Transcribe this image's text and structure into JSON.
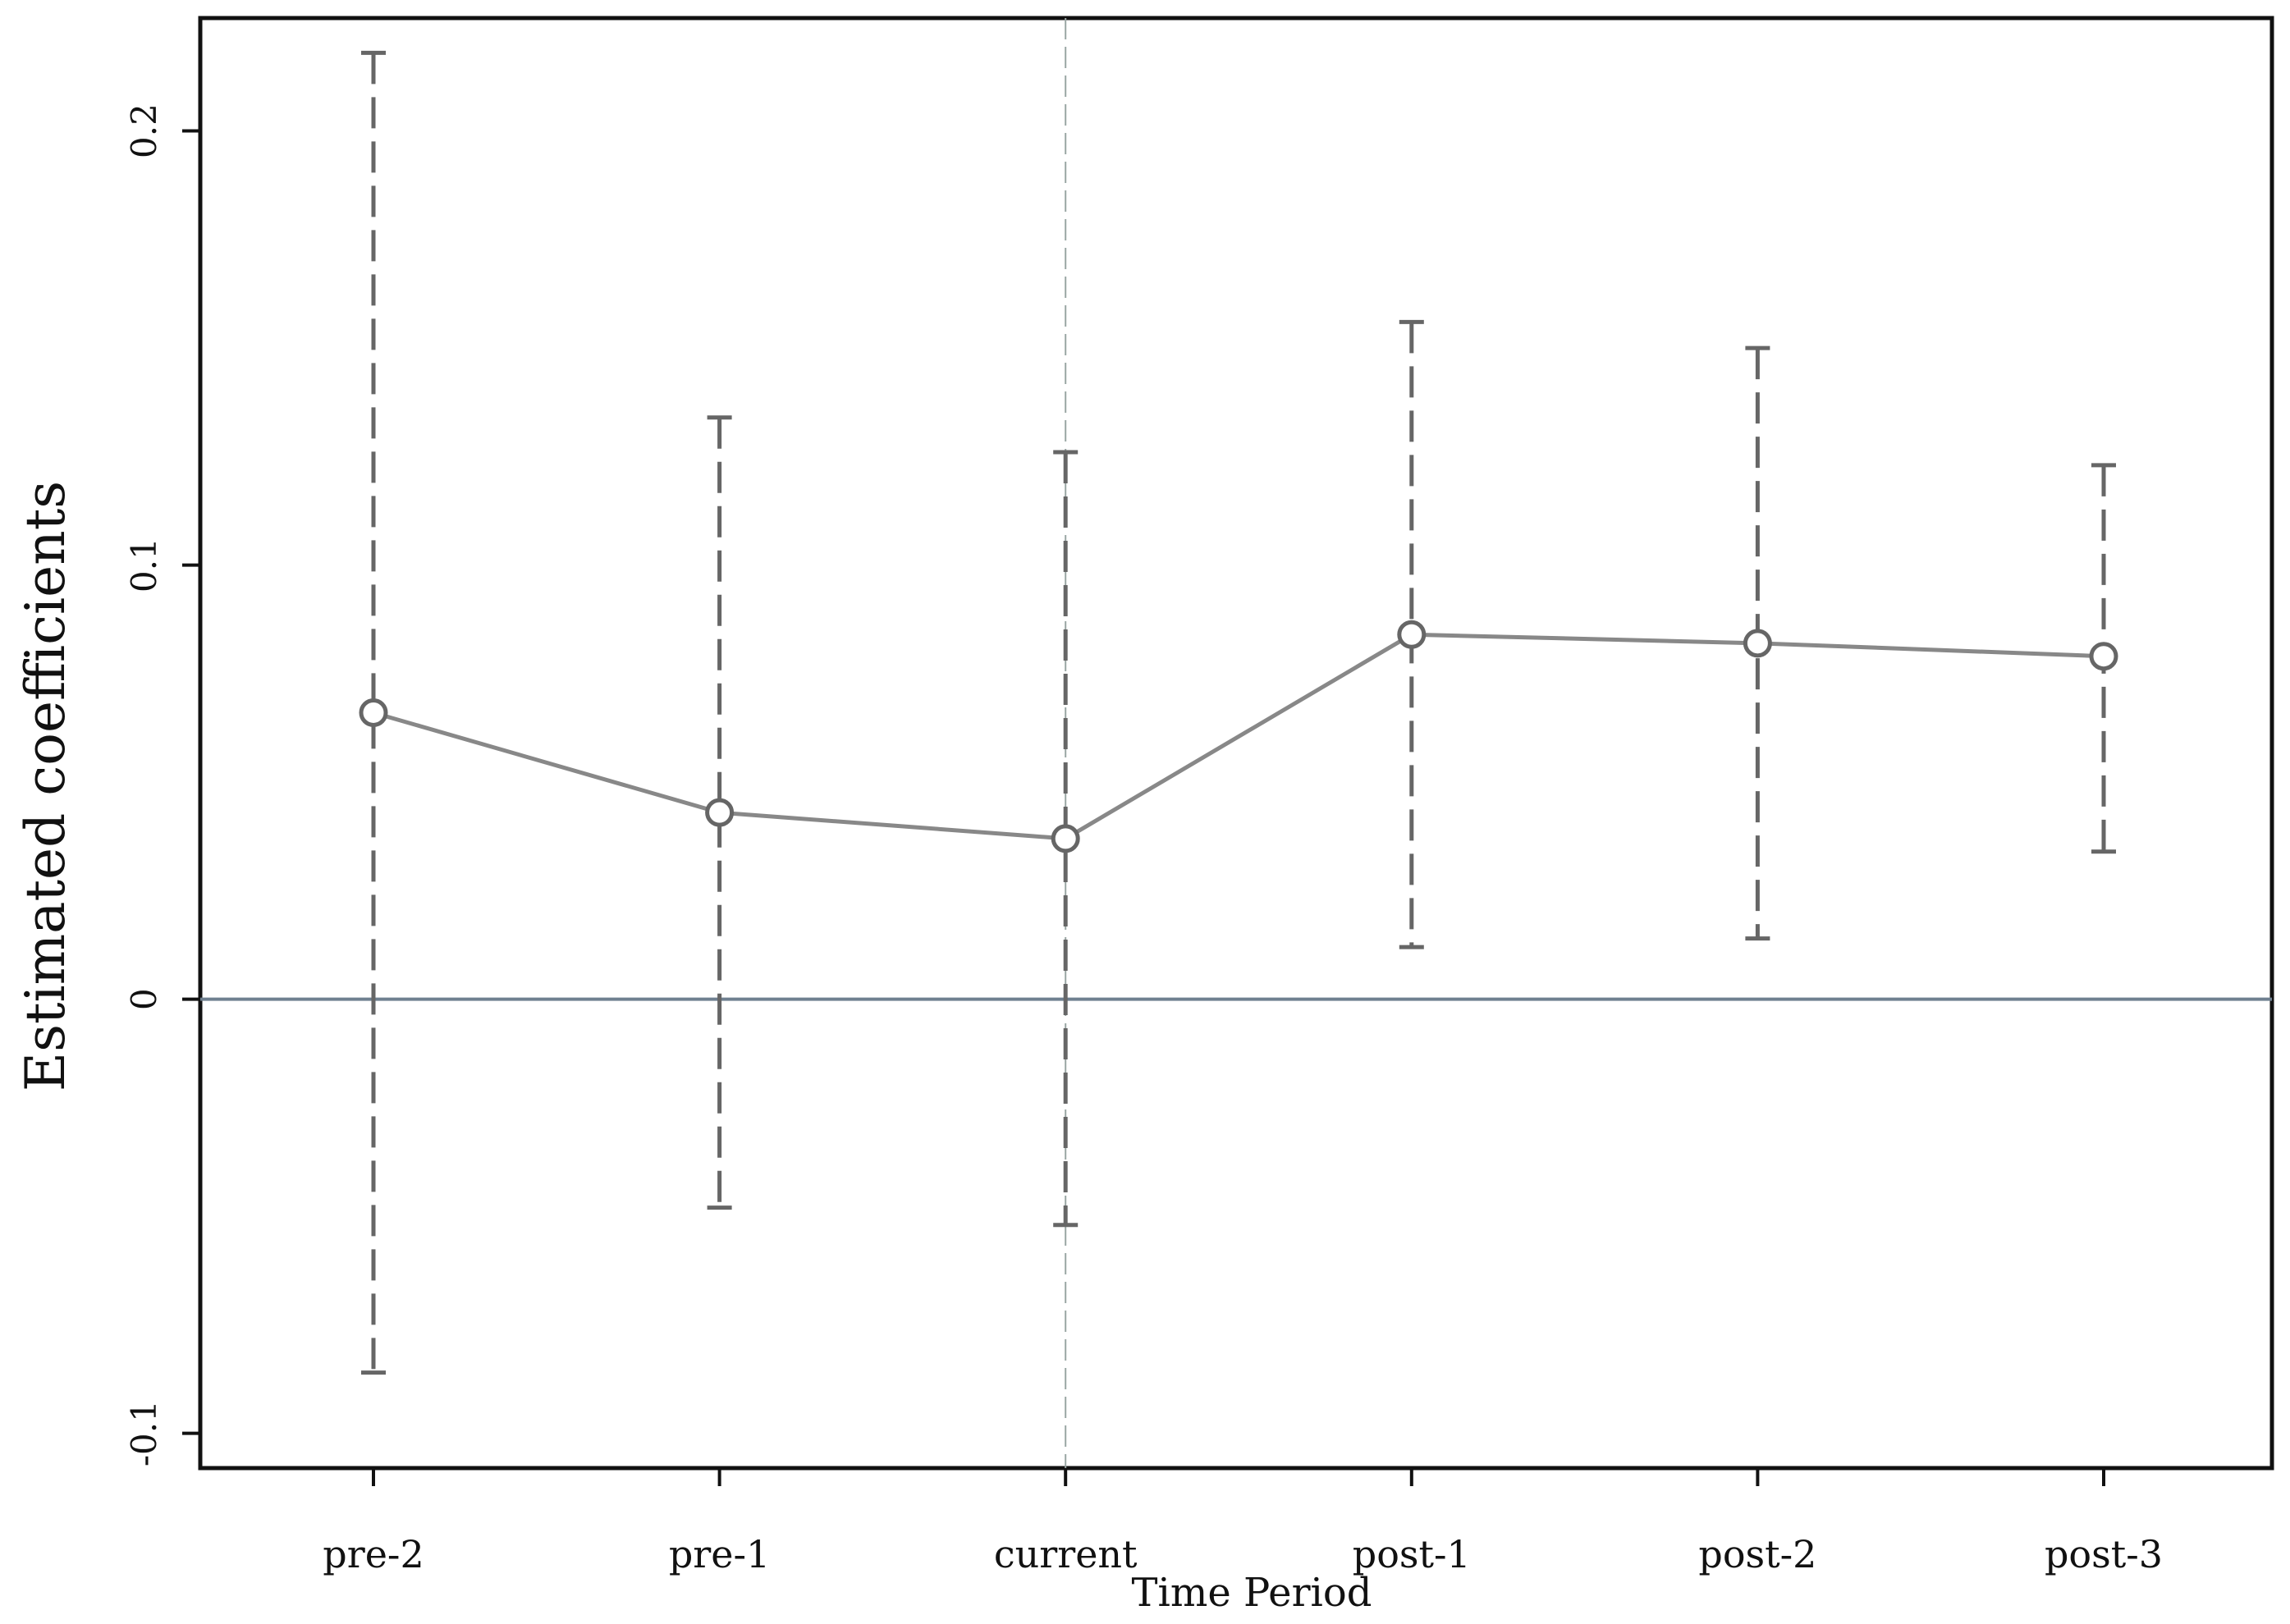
{
  "chart_data": {
    "type": "scatter",
    "title": "",
    "xlabel": "Time Period",
    "ylabel": "Estimated coefficients",
    "categories": [
      "pre-2",
      "pre-1",
      "current",
      "post-1",
      "post-2",
      "post-3"
    ],
    "series": [
      {
        "values": [
          0.066,
          0.043,
          0.037,
          0.084,
          0.082,
          0.079
        ],
        "ci_lower": [
          -0.086,
          -0.048,
          -0.052,
          0.012,
          0.014,
          0.034
        ],
        "ci_upper": [
          0.218,
          0.134,
          0.126,
          0.156,
          0.15,
          0.123
        ]
      }
    ],
    "ylim": [
      -0.108,
      0.226
    ],
    "yticks": [
      -0.1,
      0,
      0.1,
      0.2
    ],
    "ytick_labels": [
      "-0.1",
      "0",
      "0.1",
      "0.2"
    ],
    "reference_line_y": 0,
    "reference_line_x": "current",
    "grid": false,
    "colors": {
      "line": "#888888",
      "marker": "#666666",
      "errorbar": "#666666",
      "zero_line": "#6f8090",
      "vline": "#9aa6a4",
      "axis": "#111111"
    }
  }
}
